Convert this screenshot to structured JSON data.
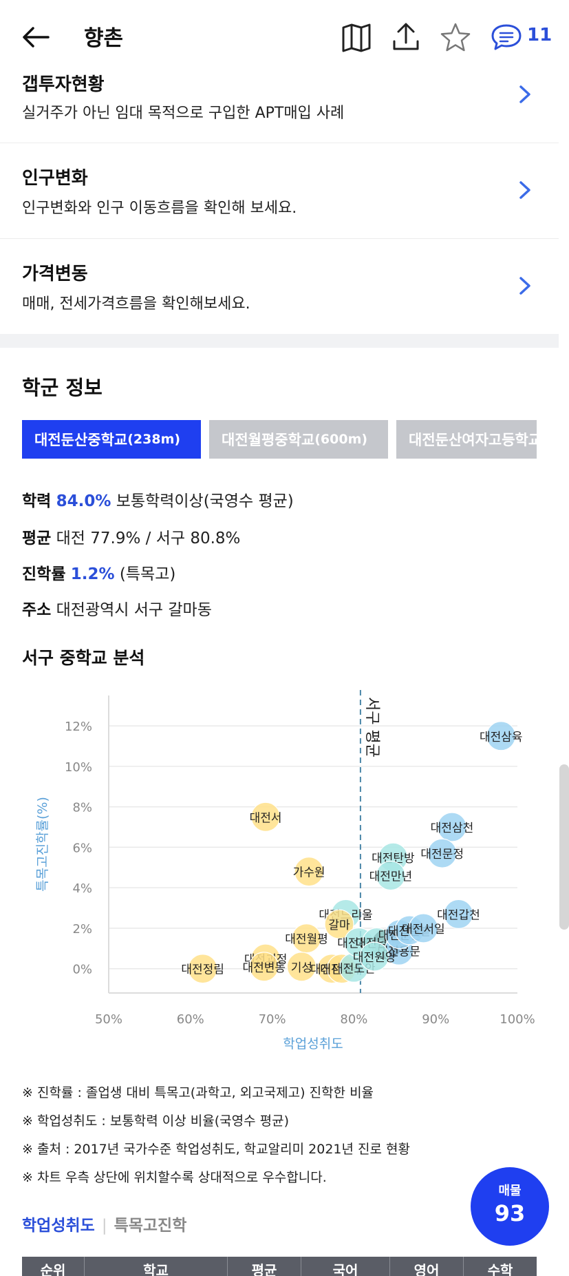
{
  "header": {
    "title": "향촌",
    "chat_count": "11",
    "icons": [
      "back-arrow-icon",
      "map-book-icon",
      "share-icon",
      "star-icon",
      "chat-icon"
    ]
  },
  "menu": [
    {
      "title": "갭투자현황",
      "desc": "실거주가 아닌 임대 목적으로 구입한 APT매입 사례"
    },
    {
      "title": "인구변화",
      "desc": "인구변화와 인구 이동흐름을 확인해 보세요."
    },
    {
      "title": "가격변동",
      "desc": "매매, 전세가격흐름을 확인해보세요."
    }
  ],
  "school_section": {
    "title": "학군 정보",
    "tabs": [
      {
        "name": "대전둔산중학교",
        "dist": "(238m)",
        "active": true
      },
      {
        "name": "대전월평중학교",
        "dist": "(600m)",
        "active": false
      },
      {
        "name": "대전둔산여자고등학교",
        "dist": "",
        "active": false
      }
    ],
    "info": {
      "achievement_label": "학력",
      "achievement_value": "84.0%",
      "achievement_desc": "보통학력이상(국영수 평균)",
      "average_label": "평균",
      "average_value": "대전 77.9% / 서구 80.8%",
      "advance_label": "진학률",
      "advance_value": "1.2%",
      "advance_desc": "(특목고)",
      "address_label": "주소",
      "address_value": "대전광역시 서구 갈마동"
    }
  },
  "chart_title": "서구 중학교 분석",
  "chart_data": {
    "type": "scatter",
    "xlabel": "학업성취도",
    "ylabel": "특목고진학률(%)",
    "xlim": [
      50,
      100
    ],
    "ylim": [
      -1.2,
      13.5
    ],
    "x_ticks": [
      "50%",
      "60%",
      "70%",
      "80%",
      "90%",
      "100%"
    ],
    "x_tick_values": [
      50,
      60,
      70,
      80,
      90,
      100
    ],
    "y_ticks": [
      "0%",
      "2%",
      "4%",
      "6%",
      "8%",
      "10%",
      "12%"
    ],
    "y_tick_values": [
      0,
      2,
      4,
      6,
      8,
      10,
      12
    ],
    "average_line": {
      "x": 80.8,
      "label": "서구 평균"
    },
    "points": [
      {
        "name": "대전삼육",
        "x": 98,
        "y": 11.5,
        "color": "#9fd3f2"
      },
      {
        "name": "대전삼천",
        "x": 92,
        "y": 7.0,
        "color": "#9fd3f2"
      },
      {
        "name": "대전문정",
        "x": 90.8,
        "y": 5.7,
        "color": "#9fd3f2"
      },
      {
        "name": "대전탄방",
        "x": 84.8,
        "y": 5.5,
        "color": "#a8e6e4"
      },
      {
        "name": "대전만년",
        "x": 84.5,
        "y": 4.6,
        "color": "#a8e6e4"
      },
      {
        "name": "대전갑천",
        "x": 92.8,
        "y": 2.7,
        "color": "#9fd3f2"
      },
      {
        "name": "대전둔산",
        "x": 84.0,
        "y": 1.2,
        "color": "#111111"
      },
      {
        "name": "대전괴정",
        "x": 69.2,
        "y": 0.5,
        "color": "#ffe08a"
      },
      {
        "name": "대전정림",
        "x": 61.5,
        "y": 0.0,
        "color": "#ffe08a"
      },
      {
        "name": "대전서",
        "x": 69.2,
        "y": 7.5,
        "color": "#ffe08a"
      },
      {
        "name": "가수원",
        "x": 74.5,
        "y": 4.8,
        "color": "#ffe08a"
      },
      {
        "name": "대전느리울",
        "x": 79,
        "y": 2.7,
        "color": "#a8e6e4"
      },
      {
        "name": "갈마",
        "x": 78.2,
        "y": 2.2,
        "color": "#ffe08a"
      },
      {
        "name": "대전월평",
        "x": 74.2,
        "y": 1.5,
        "color": "#ffe08a"
      },
      {
        "name": "대전변동",
        "x": 69,
        "y": 0.1,
        "color": "#ffe08a"
      },
      {
        "name": "기성",
        "x": 73.6,
        "y": 0.1,
        "color": "#ffe08a"
      },
      {
        "name": "대전관저",
        "x": 77.3,
        "y": 0.0,
        "color": "#ffe08a"
      },
      {
        "name": "대전복수",
        "x": 78.5,
        "y": 0.0,
        "color": "#ffe08a"
      },
      {
        "name": "대전도안",
        "x": 80,
        "y": 0.05,
        "color": "#a8e6e4"
      },
      {
        "name": "대전봉산",
        "x": 80.6,
        "y": 1.3,
        "color": "#a8e6e4"
      },
      {
        "name": "대전남선",
        "x": 82.8,
        "y": 1.3,
        "color": "#a8e6e4"
      },
      {
        "name": "대전용문",
        "x": 85.5,
        "y": 0.9,
        "color": "#9fd3f2"
      },
      {
        "name": "대전둔원",
        "x": 85.6,
        "y": 1.7,
        "color": "#9fd3f2"
      },
      {
        "name": "대전한밭",
        "x": 86.8,
        "y": 1.9,
        "color": "#9fd3f2"
      },
      {
        "name": "대전서일",
        "x": 88.5,
        "y": 2.0,
        "color": "#9fd3f2"
      },
      {
        "name": "대전원앙",
        "x": 82.5,
        "y": 0.6,
        "color": "#a8e6e4"
      }
    ]
  },
  "notes": [
    "※ 진학률 : 졸업생 대비 특목고(과학고, 외고국제고) 진학한 비율",
    "※ 학업성취도 : 보통학력 이상 비율(국영수 평균)",
    "※ 출처 : 2017년 국가수준 학업성취도, 학교알리미 2021년 진로 현황",
    "※ 차트 우측 상단에 위치할수록 상대적으로 우수합니다."
  ],
  "sub_tabs": {
    "active": "학업성취도",
    "inactive": "특목고진학"
  },
  "fab": {
    "label": "매물",
    "count": "93"
  },
  "table_headers": [
    "순위",
    "학교",
    "평균",
    "국어",
    "영어",
    "수학"
  ]
}
